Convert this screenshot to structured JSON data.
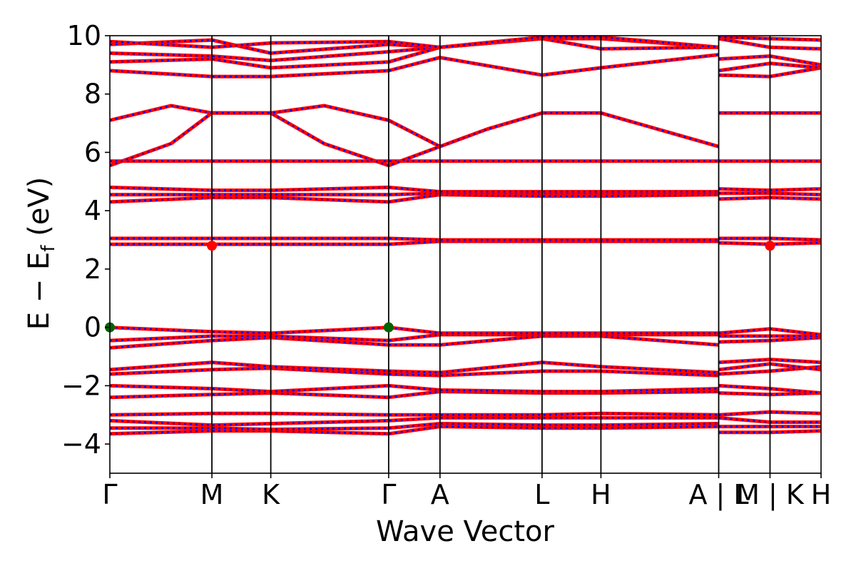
{
  "chart_data": {
    "type": "line",
    "title": "",
    "xlabel": "Wave Vector",
    "ylabel_main": "E − E",
    "ylabel_sub": "f",
    "ylabel_unit": " (eV)",
    "ylim": [
      -5,
      10
    ],
    "yticks": [
      {
        "value": -4,
        "label": "−4"
      },
      {
        "value": -2,
        "label": "−2"
      },
      {
        "value": 0,
        "label": "0"
      },
      {
        "value": 2,
        "label": "2"
      },
      {
        "value": 4,
        "label": "4"
      },
      {
        "value": 6,
        "label": "6"
      },
      {
        "value": 8,
        "label": "8"
      },
      {
        "value": 10,
        "label": "10"
      }
    ],
    "kpath_labels": [
      "Γ",
      "M",
      "K",
      "Γ",
      "A",
      "L",
      "H",
      "A | L",
      "M | K",
      "H"
    ],
    "kpath_positions": [
      0,
      1,
      1.577,
      2.732,
      3.235,
      4.235,
      4.812,
      5.966,
      6.469,
      6.969
    ],
    "colors": {
      "band_outer": "#ff0000",
      "band_inner": "#0000ff",
      "vbm_marker": "#006400",
      "cbm_marker": "#ff0000"
    },
    "vbm_points": [
      {
        "x": 0,
        "y": 0
      },
      {
        "x": 2.732,
        "y": 0
      }
    ],
    "cbm_points": [
      {
        "x": 1,
        "y": 2.8
      },
      {
        "x": 6.469,
        "y": 2.8
      }
    ],
    "series": [
      {
        "x": [
          0,
          1,
          1.577,
          2.732,
          3.235,
          4.235,
          4.812,
          5.966
        ],
        "y": [
          -3.65,
          -3.55,
          -3.55,
          -3.65,
          -3.4,
          -3.45,
          -3.45,
          -3.4
        ]
      },
      {
        "x": [
          0,
          1,
          1.577,
          2.732,
          3.235,
          4.235,
          4.812,
          5.966
        ],
        "y": [
          -3.45,
          -3.45,
          -3.5,
          -3.45,
          -3.3,
          -3.35,
          -3.35,
          -3.3
        ]
      },
      {
        "x": [
          0,
          1,
          1.577,
          2.732,
          3.235,
          4.235,
          4.812,
          5.966
        ],
        "y": [
          -3.2,
          -3.35,
          -3.3,
          -3.2,
          -3.1,
          -3.1,
          -3.1,
          -3.1
        ]
      },
      {
        "x": [
          0,
          1,
          1.577,
          2.732,
          3.235,
          4.235,
          4.812,
          5.966
        ],
        "y": [
          -3.0,
          -2.95,
          -2.95,
          -3.0,
          -3.0,
          -3.0,
          -2.95,
          -3.0
        ]
      },
      {
        "x": [
          0,
          1,
          1.577,
          2.732,
          3.235,
          4.235,
          4.812,
          5.966
        ],
        "y": [
          -2.4,
          -2.3,
          -2.25,
          -2.4,
          -2.2,
          -2.25,
          -2.25,
          -2.2
        ]
      },
      {
        "x": [
          0,
          1,
          1.577,
          2.732,
          3.235,
          4.235,
          4.812,
          5.966
        ],
        "y": [
          -2.0,
          -2.1,
          -2.2,
          -2.0,
          -2.15,
          -2.2,
          -2.2,
          -2.1
        ]
      },
      {
        "x": [
          0,
          1,
          1.577,
          2.732,
          3.235,
          4.235,
          4.812,
          5.966
        ],
        "y": [
          -1.6,
          -1.45,
          -1.4,
          -1.6,
          -1.65,
          -1.5,
          -1.5,
          -1.65
        ]
      },
      {
        "x": [
          0,
          1,
          1.577,
          2.732,
          3.235,
          4.235,
          4.812,
          5.966
        ],
        "y": [
          -1.45,
          -1.2,
          -1.35,
          -1.5,
          -1.55,
          -1.2,
          -1.35,
          -1.55
        ]
      },
      {
        "x": [
          0,
          1,
          1.577,
          2.732,
          3.235,
          4.235,
          4.812,
          5.966
        ],
        "y": [
          -0.7,
          -0.45,
          -0.35,
          -0.6,
          -0.6,
          -0.3,
          -0.3,
          -0.6
        ]
      },
      {
        "x": [
          0,
          1,
          1.577,
          2.732,
          3.235,
          4.235,
          4.812,
          5.966
        ],
        "y": [
          -0.45,
          -0.3,
          -0.3,
          -0.45,
          -0.25,
          -0.25,
          -0.25,
          -0.25
        ]
      },
      {
        "x": [
          0,
          1,
          1.577,
          2.732,
          3.235,
          4.235,
          4.812,
          5.966
        ],
        "y": [
          0.0,
          -0.15,
          -0.2,
          0.0,
          -0.2,
          -0.2,
          -0.2,
          -0.2
        ]
      },
      {
        "x": [
          0,
          1,
          1.577,
          2.732,
          3.235,
          4.235,
          4.812,
          5.966
        ],
        "y": [
          2.85,
          2.85,
          2.85,
          2.85,
          2.95,
          2.95,
          2.95,
          2.95
        ]
      },
      {
        "x": [
          0,
          1,
          1.577,
          2.732,
          3.235,
          4.235,
          4.812,
          5.966
        ],
        "y": [
          3.05,
          3.05,
          3.05,
          3.05,
          3.0,
          3.0,
          3.0,
          3.0
        ]
      },
      {
        "x": [
          0,
          1,
          1.577,
          2.732,
          3.235,
          4.235,
          4.812,
          5.966
        ],
        "y": [
          4.3,
          4.45,
          4.45,
          4.3,
          4.55,
          4.5,
          4.5,
          4.55
        ]
      },
      {
        "x": [
          0,
          1,
          1.577,
          2.732,
          3.235,
          4.235,
          4.812,
          5.966
        ],
        "y": [
          4.55,
          4.55,
          4.55,
          4.55,
          4.6,
          4.6,
          4.6,
          4.6
        ]
      },
      {
        "x": [
          0,
          1,
          1.577,
          2.732,
          3.235,
          4.235,
          4.812,
          5.966
        ],
        "y": [
          4.8,
          4.7,
          4.7,
          4.8,
          4.65,
          4.65,
          4.65,
          4.65
        ]
      },
      {
        "x": [
          0,
          5.966
        ],
        "y": [
          5.7,
          5.7
        ]
      },
      {
        "x": [
          0,
          0.6,
          1,
          1.577,
          2.1,
          2.732,
          3.235
        ],
        "y": [
          5.55,
          6.3,
          7.35,
          7.35,
          6.3,
          5.55,
          6.2
        ]
      },
      {
        "x": [
          0,
          0.6,
          1,
          1.577,
          2.1,
          2.732,
          3.235,
          3.7,
          4.235,
          4.812,
          5.966
        ],
        "y": [
          7.1,
          7.6,
          7.35,
          7.35,
          7.6,
          7.1,
          6.2,
          6.8,
          7.35,
          7.35,
          6.2
        ]
      },
      {
        "x": [
          0,
          1,
          1.577,
          2.732,
          3.235,
          4.235,
          4.812,
          5.966
        ],
        "y": [
          8.8,
          8.6,
          8.6,
          8.8,
          9.25,
          8.65,
          8.9,
          9.35
        ]
      },
      {
        "x": [
          0,
          1,
          1.577,
          2.732,
          3.235,
          4.235,
          4.812,
          5.966
        ],
        "y": [
          9.1,
          9.2,
          8.9,
          9.1,
          9.6,
          9.9,
          9.55,
          9.6
        ]
      },
      {
        "x": [
          0,
          1,
          1.577,
          2.732,
          3.235,
          4.235,
          4.812,
          5.966
        ],
        "y": [
          9.4,
          9.3,
          9.15,
          9.45,
          9.6,
          9.9,
          9.9,
          9.6
        ]
      },
      {
        "x": [
          0,
          1,
          1.577,
          2.732,
          3.235,
          4.235,
          4.812,
          5.966
        ],
        "y": [
          9.7,
          9.85,
          9.4,
          9.7,
          9.6,
          9.95,
          9.95,
          9.6
        ]
      },
      {
        "x": [
          0,
          1,
          1.577,
          2.732,
          3.235,
          4.235,
          4.812,
          5.966
        ],
        "y": [
          9.8,
          9.6,
          9.75,
          9.8,
          9.6,
          9.95,
          9.95,
          9.6
        ]
      },
      {
        "x": [
          5.966,
          6.469,
          6.969
        ],
        "y": [
          -3.6,
          -3.6,
          -3.55
        ]
      },
      {
        "x": [
          5.966,
          6.469,
          6.969
        ],
        "y": [
          -3.4,
          -3.4,
          -3.4
        ]
      },
      {
        "x": [
          5.966,
          6.469,
          6.969
        ],
        "y": [
          -3.1,
          -3.25,
          -3.25
        ]
      },
      {
        "x": [
          5.966,
          6.469,
          6.969
        ],
        "y": [
          -3.0,
          -2.9,
          -2.95
        ]
      },
      {
        "x": [
          5.966,
          6.469,
          6.969
        ],
        "y": [
          -2.25,
          -2.3,
          -2.25
        ]
      },
      {
        "x": [
          5.966,
          6.469,
          6.969
        ],
        "y": [
          -2.0,
          -2.1,
          -2.25
        ]
      },
      {
        "x": [
          5.966,
          6.469,
          6.969
        ],
        "y": [
          -1.6,
          -1.5,
          -1.35
        ]
      },
      {
        "x": [
          5.966,
          6.469,
          6.969
        ],
        "y": [
          -1.45,
          -1.25,
          -1.45
        ]
      },
      {
        "x": [
          5.966,
          6.469,
          6.969
        ],
        "y": [
          -1.2,
          -1.1,
          -1.2
        ]
      },
      {
        "x": [
          5.966,
          6.469,
          6.969
        ],
        "y": [
          -0.5,
          -0.45,
          -0.35
        ]
      },
      {
        "x": [
          5.966,
          6.469,
          6.969
        ],
        "y": [
          -0.3,
          -0.3,
          -0.3
        ]
      },
      {
        "x": [
          5.966,
          6.469,
          6.969
        ],
        "y": [
          -0.2,
          -0.05,
          -0.25
        ]
      },
      {
        "x": [
          5.966,
          6.469,
          6.969
        ],
        "y": [
          2.9,
          2.85,
          2.9
        ]
      },
      {
        "x": [
          5.966,
          6.469,
          6.969
        ],
        "y": [
          3.05,
          3.05,
          3.0
        ]
      },
      {
        "x": [
          5.966,
          6.469,
          6.969
        ],
        "y": [
          4.4,
          4.45,
          4.4
        ]
      },
      {
        "x": [
          5.966,
          6.469,
          6.969
        ],
        "y": [
          4.6,
          4.6,
          4.55
        ]
      },
      {
        "x": [
          5.966,
          6.469,
          6.969
        ],
        "y": [
          4.75,
          4.7,
          4.75
        ]
      },
      {
        "x": [
          5.966,
          6.969
        ],
        "y": [
          5.7,
          5.7
        ]
      },
      {
        "x": [
          5.966,
          6.469,
          6.969
        ],
        "y": [
          7.35,
          7.35,
          7.35
        ]
      },
      {
        "x": [
          5.966,
          6.469,
          6.969
        ],
        "y": [
          8.65,
          8.6,
          8.9
        ]
      },
      {
        "x": [
          5.966,
          6.469,
          6.969
        ],
        "y": [
          8.8,
          9.05,
          8.9
        ]
      },
      {
        "x": [
          5.966,
          6.469,
          6.969
        ],
        "y": [
          9.2,
          9.3,
          9.0
        ]
      },
      {
        "x": [
          5.966,
          6.469,
          6.969
        ],
        "y": [
          9.9,
          9.6,
          9.55
        ]
      },
      {
        "x": [
          5.966,
          6.469,
          6.969
        ],
        "y": [
          9.95,
          9.9,
          9.85
        ]
      }
    ]
  }
}
